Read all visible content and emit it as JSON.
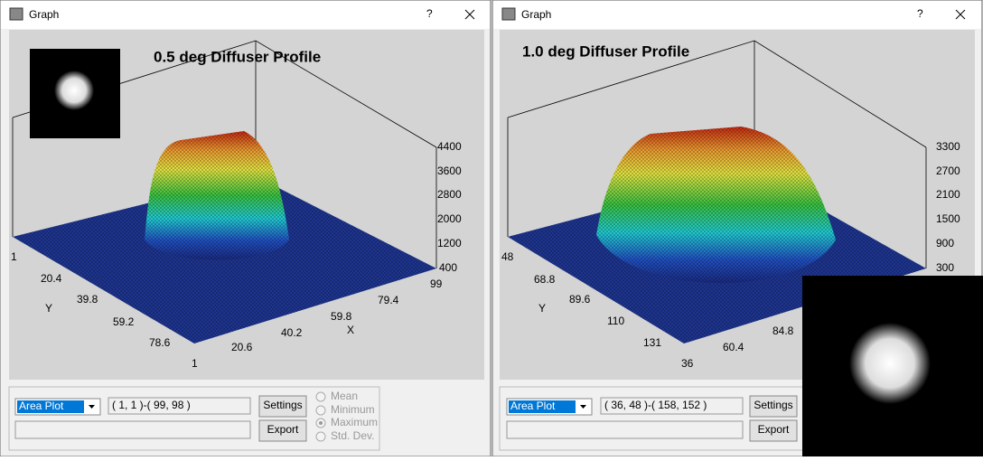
{
  "windows": [
    {
      "title": "Graph",
      "help": "?",
      "plot_title": "0.5 deg Diffuser Profile",
      "z_ticks": [
        4400,
        3600,
        2800,
        2000,
        1200,
        400
      ],
      "y_axis_label": "Y",
      "y_ticks": [
        1,
        20.4,
        39.8,
        59.2,
        78.6
      ],
      "x_axis_label": "X",
      "x_ticks": [
        1,
        20.6,
        40.2,
        59.8,
        79.4,
        99
      ],
      "plot_type": "Area Plot",
      "range": "( 1, 1 )-( 99, 98 )",
      "buttons": [
        "Settings",
        "Export"
      ],
      "options": [
        "Mean",
        "Minimum",
        "Maximum",
        "Std. Dev."
      ]
    },
    {
      "title": "Graph",
      "help": "?",
      "plot_title": "1.0 deg Diffuser Profile",
      "z_ticks": [
        3300,
        2700,
        2100,
        1500,
        900,
        300
      ],
      "y_axis_label": "Y",
      "y_ticks": [
        48,
        68.8,
        89.6,
        110,
        131
      ],
      "x_ticks": [
        36,
        60.4,
        84.8
      ],
      "plot_type": "Area Plot",
      "range": "( 36, 48 )-( 158, 152 )",
      "buttons": [
        "Settings",
        "Export"
      ]
    }
  ]
}
